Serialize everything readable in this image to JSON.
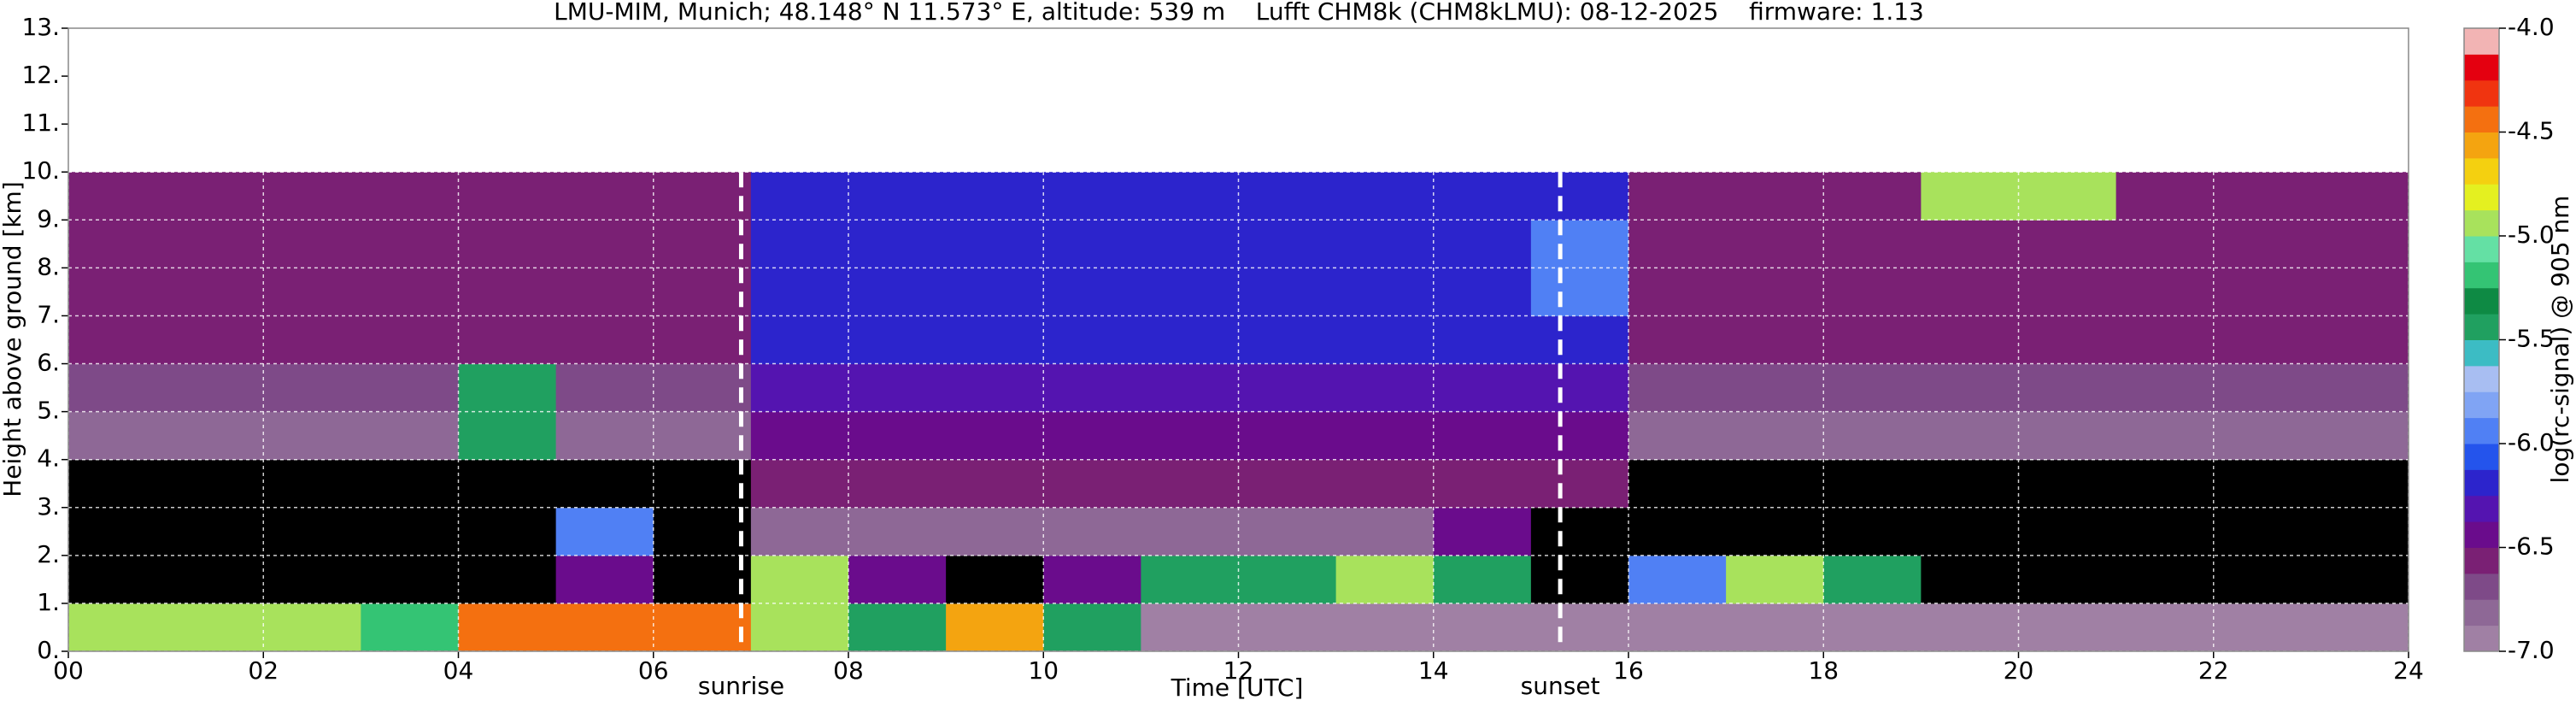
{
  "chart_data": {
    "type": "heatmap",
    "title": "LMU-MIM, Munich; 48.148° N 11.573° E, altitude: 539 m    Lufft CHM8k (CHM8kLMU): 08-12-2025    firmware: 1.13",
    "x_label": "Time [UTC]",
    "y_label": "Height above ground [km]",
    "colorbar_label": "log(rc-signal) @ 905 nm",
    "xlim": [
      0,
      24
    ],
    "ylim": [
      0,
      13
    ],
    "xticks": [
      {
        "value": 0,
        "label": "00"
      },
      {
        "value": 2,
        "label": "02"
      },
      {
        "value": 4,
        "label": "04"
      },
      {
        "value": 6,
        "label": "06"
      },
      {
        "value": 8,
        "label": "08"
      },
      {
        "value": 10,
        "label": "10"
      },
      {
        "value": 12,
        "label": "12"
      },
      {
        "value": 14,
        "label": "14"
      },
      {
        "value": 16,
        "label": "16"
      },
      {
        "value": 18,
        "label": "18"
      },
      {
        "value": 20,
        "label": "20"
      },
      {
        "value": 22,
        "label": "22"
      },
      {
        "value": 24,
        "label": "24"
      }
    ],
    "yticks": [
      {
        "value": 0,
        "label": "0."
      },
      {
        "value": 1,
        "label": "1."
      },
      {
        "value": 2,
        "label": "2."
      },
      {
        "value": 3,
        "label": "3."
      },
      {
        "value": 4,
        "label": "4."
      },
      {
        "value": 5,
        "label": "5."
      },
      {
        "value": 6,
        "label": "6."
      },
      {
        "value": 7,
        "label": "7."
      },
      {
        "value": 8,
        "label": "8."
      },
      {
        "value": 9,
        "label": "9."
      },
      {
        "value": 10,
        "label": "10."
      },
      {
        "value": 11,
        "label": "11."
      },
      {
        "value": 12,
        "label": "12."
      },
      {
        "value": 13,
        "label": "13."
      }
    ],
    "grid": true,
    "x_edges": [
      0,
      1,
      2,
      3,
      4,
      5,
      6,
      7,
      8,
      9,
      10,
      11,
      12,
      13,
      14,
      15,
      16,
      17,
      18,
      19,
      20,
      21,
      22,
      23,
      24
    ],
    "y_edges": [
      0,
      1,
      2,
      3,
      4,
      5,
      6,
      7,
      8,
      9,
      10
    ],
    "z": [
      [
        -5.0,
        -5.0,
        -5.0,
        -5.2,
        -4.5,
        -4.5,
        -4.5,
        -5.0,
        -5.5,
        -4.6,
        -5.5,
        -6.9,
        -6.9,
        -6.9,
        -6.9,
        -6.9,
        -6.9,
        -6.9,
        -6.9,
        -6.9,
        -6.9,
        -6.9,
        -6.9,
        -6.9
      ],
      [
        -7.5,
        -7.5,
        -7.5,
        -7.5,
        -7.5,
        -6.5,
        -7.5,
        -5.0,
        -6.5,
        -7.5,
        -6.5,
        -5.5,
        -5.5,
        -5.0,
        -5.5,
        -7.5,
        -6.0,
        -5.0,
        -5.5,
        -7.5,
        -7.5,
        -7.5,
        -7.5,
        -7.5
      ],
      [
        -7.5,
        -7.5,
        -7.5,
        -7.5,
        -7.5,
        -6.0,
        -7.5,
        -6.8,
        -6.8,
        -6.8,
        -6.8,
        -6.8,
        -6.8,
        -6.8,
        -6.5,
        -7.5,
        -7.5,
        -7.5,
        -7.5,
        -7.5,
        -7.5,
        -7.5,
        -7.5,
        -7.5
      ],
      [
        -7.3,
        -7.3,
        -7.3,
        -7.3,
        -7.3,
        -7.3,
        -7.3,
        -6.6,
        -6.6,
        -6.6,
        -6.6,
        -6.6,
        -6.6,
        -6.6,
        -6.6,
        -6.6,
        -7.3,
        -7.3,
        -7.3,
        -7.3,
        -7.3,
        -7.3,
        -7.3,
        -7.3
      ],
      [
        -6.8,
        -6.8,
        -6.8,
        -6.8,
        -5.5,
        -6.8,
        -6.8,
        -6.4,
        -6.4,
        -6.4,
        -6.4,
        -6.4,
        -6.4,
        -6.4,
        -6.4,
        -6.4,
        -6.8,
        -6.8,
        -6.8,
        -6.8,
        -6.8,
        -6.8,
        -6.8,
        -6.8
      ],
      [
        -6.7,
        -6.7,
        -6.7,
        -6.7,
        -5.5,
        -6.7,
        -6.7,
        -6.3,
        -6.3,
        -6.3,
        -6.3,
        -6.3,
        -6.3,
        -6.3,
        -6.3,
        -6.3,
        -6.7,
        -6.7,
        -6.7,
        -6.7,
        -6.7,
        -6.7,
        -6.7,
        -6.7
      ],
      [
        -6.6,
        -6.6,
        -6.6,
        -6.6,
        -6.6,
        -6.6,
        -6.6,
        -6.2,
        -6.2,
        -6.2,
        -6.2,
        -6.2,
        -6.2,
        -6.2,
        -6.2,
        -6.2,
        -6.6,
        -6.6,
        -6.6,
        -6.6,
        -6.6,
        -6.6,
        -6.6,
        -6.6
      ],
      [
        -6.6,
        -6.6,
        -6.6,
        -6.6,
        -6.6,
        -6.6,
        -6.6,
        -6.2,
        -6.2,
        -6.2,
        -6.2,
        -6.2,
        -6.2,
        -6.2,
        -6.2,
        -6.0,
        -6.6,
        -6.6,
        -6.6,
        -6.6,
        -6.6,
        -6.6,
        -6.6,
        -6.6
      ],
      [
        -6.6,
        -6.6,
        -6.6,
        -6.6,
        -6.6,
        -6.6,
        -6.6,
        -6.2,
        -6.2,
        -6.2,
        -6.2,
        -6.2,
        -6.2,
        -6.2,
        -6.2,
        -6.0,
        -6.6,
        -6.6,
        -6.6,
        -6.6,
        -6.6,
        -6.6,
        -6.6,
        -6.6
      ],
      [
        -6.6,
        -6.6,
        -6.6,
        -6.6,
        -6.6,
        -6.6,
        -6.6,
        -6.2,
        -6.2,
        -6.2,
        -6.2,
        -6.2,
        -6.2,
        -6.2,
        -6.2,
        -6.2,
        -6.6,
        -6.6,
        -6.6,
        -5.0,
        -5.0,
        -6.6,
        -6.6,
        -6.6
      ]
    ],
    "zlim": [
      -7,
      -4
    ],
    "under_color": "#000000",
    "colorbar_colors": [
      "#a080a4",
      "#8e6896",
      "#7e4a88",
      "#7a2074",
      "#6a0c8c",
      "#5414b0",
      "#2c24cc",
      "#2454ec",
      "#5080f4",
      "#80a4f4",
      "#a8bef2",
      "#3cbcc4",
      "#20a060",
      "#0e8a44",
      "#34c474",
      "#64e0a4",
      "#a8e25c",
      "#e4f020",
      "#f4d010",
      "#f4a410",
      "#f47010",
      "#f03410",
      "#e40010",
      "#f2b4b4",
      "#ede0e0",
      "#ede0e0",
      "#ffffff",
      "#ffffff"
    ],
    "colorbar_step": 0.125,
    "colorbar_ticks": [
      {
        "value": -4,
        "label": "-4.0"
      },
      -4.5,
      {
        "value": -5,
        "label": "-5.0"
      },
      -5.5,
      {
        "value": -6,
        "label": "-6.0"
      },
      -6.5,
      {
        "value": -7,
        "label": "-7.0"
      }
    ],
    "annotations": [
      {
        "text": "sunrise",
        "x": 6.9
      },
      {
        "text": "sunset",
        "x": 15.3
      }
    ]
  }
}
